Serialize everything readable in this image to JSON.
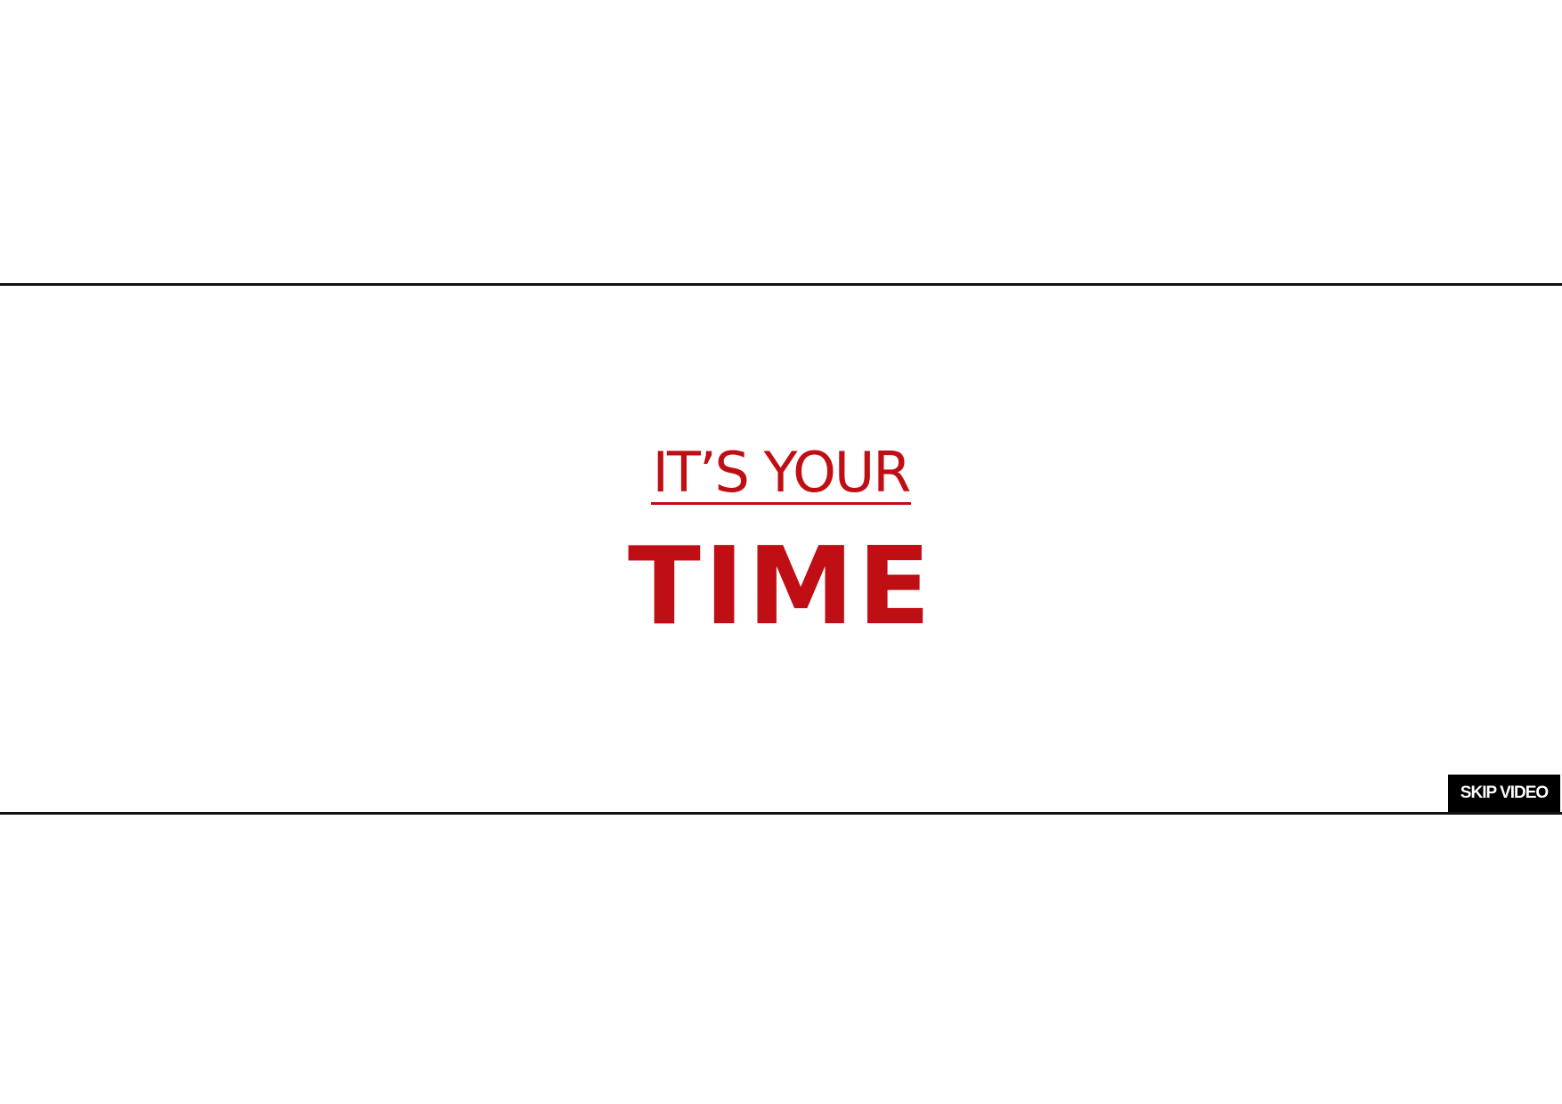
{
  "headline": {
    "kicker": "IT’S YOUR",
    "main_word": "TIME"
  },
  "controls": {
    "skip_label": "SKIP VIDEO"
  },
  "colors": {
    "accent": "#c00f14",
    "rule": "#111111",
    "button_bg": "#000000",
    "button_text": "#ffffff",
    "background": "#ffffff"
  }
}
